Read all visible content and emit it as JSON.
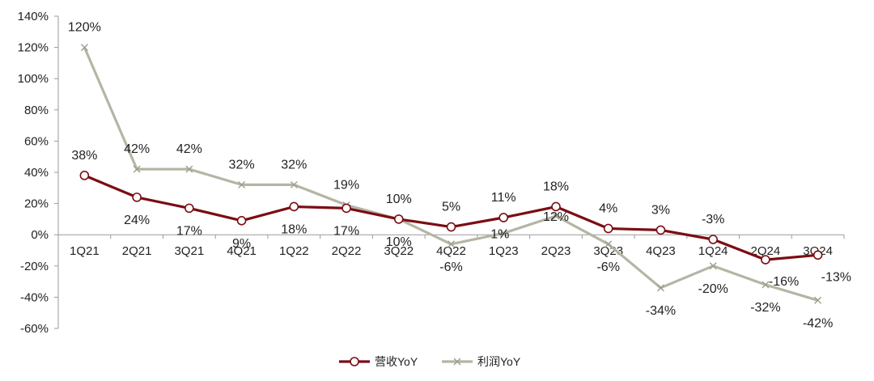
{
  "chart_data": {
    "type": "line",
    "categories": [
      "1Q21",
      "2Q21",
      "3Q21",
      "4Q21",
      "1Q22",
      "2Q22",
      "3Q22",
      "4Q22",
      "1Q23",
      "2Q23",
      "3Q23",
      "4Q23",
      "1Q24",
      "2Q24",
      "3Q24"
    ],
    "ylim": [
      -60,
      140
    ],
    "yticks": [
      -60,
      -40,
      -20,
      0,
      20,
      40,
      60,
      80,
      100,
      120,
      140
    ],
    "ytick_labels": [
      "-60%",
      "-40%",
      "-20%",
      "0%",
      "20%",
      "40%",
      "60%",
      "80%",
      "100%",
      "120%",
      "140%"
    ],
    "grid": false,
    "legend_position": "bottom-center",
    "series": [
      {
        "name": "营收YoY",
        "color": "#7b0d14",
        "marker": "circle",
        "values": [
          38,
          24,
          17,
          9,
          18,
          17,
          10,
          5,
          11,
          18,
          4,
          3,
          -3,
          -16,
          -13
        ],
        "labels": [
          "38%",
          "24%",
          "17%",
          "9%",
          "18%",
          "17%",
          "10%",
          "5%",
          "11%",
          "18%",
          "4%",
          "3%",
          "-3%",
          "-16%",
          "-13%"
        ]
      },
      {
        "name": "利润YoY",
        "color": "#b5b5a5",
        "marker": "x",
        "values": [
          120,
          42,
          42,
          32,
          32,
          19,
          10,
          -6,
          1,
          12,
          -6,
          -34,
          -20,
          -32,
          -42
        ],
        "labels": [
          "120%",
          "42%",
          "42%",
          "32%",
          "32%",
          "19%",
          "10%",
          "-6%",
          "1%",
          "12%",
          "-6%",
          "-34%",
          "-20%",
          "-32%",
          "-42%"
        ]
      }
    ]
  }
}
